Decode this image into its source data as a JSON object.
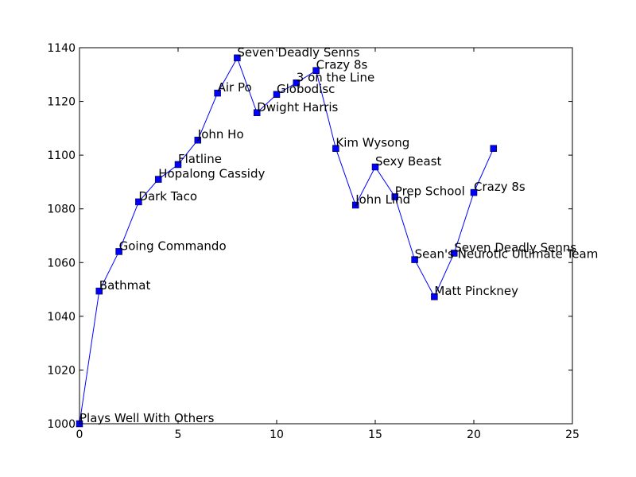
{
  "chart_data": {
    "type": "line",
    "title": "",
    "xlabel": "",
    "ylabel": "",
    "xlim": [
      0,
      25
    ],
    "ylim": [
      1000,
      1140
    ],
    "xticks": [
      0,
      5,
      10,
      15,
      20,
      25
    ],
    "yticks": [
      1000,
      1020,
      1040,
      1060,
      1080,
      1100,
      1120,
      1140
    ],
    "grid": false,
    "line_color": "#0000ff",
    "marker": "square",
    "series": [
      {
        "points": [
          {
            "x": 0,
            "y": 1000.0,
            "label": "Plays Well With Others"
          },
          {
            "x": 1,
            "y": 1049.4,
            "label": "Bathmat"
          },
          {
            "x": 2,
            "y": 1064.1,
            "label": "Going Commando"
          },
          {
            "x": 3,
            "y": 1082.6,
            "label": "Dark Taco"
          },
          {
            "x": 4,
            "y": 1091.0,
            "label": "Hopalong Cassidy"
          },
          {
            "x": 5,
            "y": 1096.5,
            "label": "Flatline"
          },
          {
            "x": 6,
            "y": 1105.6,
            "label": "John Ho"
          },
          {
            "x": 7,
            "y": 1123.1,
            "label": "Air Po"
          },
          {
            "x": 8,
            "y": 1136.2,
            "label": "Seven Deadly Senns"
          },
          {
            "x": 9,
            "y": 1115.8,
            "label": "Dwight Harris"
          },
          {
            "x": 10,
            "y": 1122.6,
            "label": "Globodisc"
          },
          {
            "x": 11,
            "y": 1126.9,
            "label": "3 on the Line"
          },
          {
            "x": 12,
            "y": 1131.5,
            "label": "Crazy 8s"
          },
          {
            "x": 13,
            "y": 1102.5,
            "label": "Kim Wysong"
          },
          {
            "x": 14,
            "y": 1081.4,
            "label": "John Lind"
          },
          {
            "x": 15,
            "y": 1095.6,
            "label": "Sexy Beast"
          },
          {
            "x": 16,
            "y": 1084.5,
            "label": "Prep School"
          },
          {
            "x": 17,
            "y": 1061.1,
            "label": "Sean's Neurotic Ultimate Team"
          },
          {
            "x": 18,
            "y": 1047.3,
            "label": "Matt Pinckney"
          },
          {
            "x": 19,
            "y": 1063.5,
            "label": "Seven Deadly Senns"
          },
          {
            "x": 20,
            "y": 1086.1,
            "label": "Crazy 8s"
          },
          {
            "x": 21,
            "y": 1102.5,
            "label": ""
          }
        ]
      }
    ]
  }
}
